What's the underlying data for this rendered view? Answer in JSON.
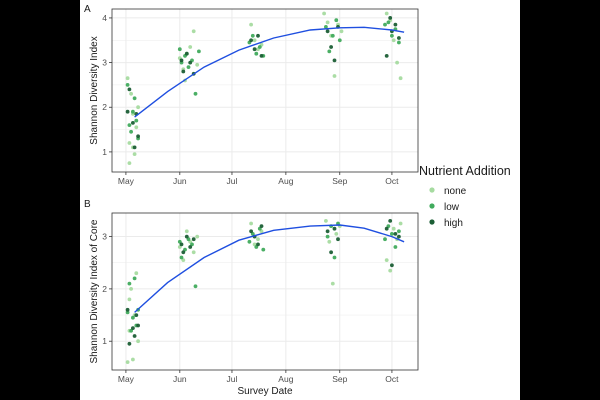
{
  "legend": {
    "title": "Nutrient Addition",
    "position": "right",
    "items": [
      {
        "label": "none",
        "color": "#a6dba0"
      },
      {
        "label": "low",
        "color": "#41ab5d"
      },
      {
        "label": "high",
        "color": "#1b5e35"
      }
    ]
  },
  "colors": {
    "fit_line": "#1f4fe0",
    "grid": "#ebebeb",
    "panel_border": "#333333",
    "text": "#1a1a1a"
  },
  "chart_data": [
    {
      "type": "scatter",
      "panel_label": "A",
      "xlabel": "",
      "ylabel": "Shannon Diversity Index",
      "x_ticks": [
        "May",
        "Jun",
        "Jul",
        "Aug",
        "Sep",
        "Oct"
      ],
      "xlim": [
        "2019-04-23",
        "2019-10-16"
      ],
      "ylim": [
        0.55,
        4.2
      ],
      "y_ticks": [
        1,
        2,
        3,
        4
      ],
      "grid": true,
      "fit_curve": {
        "x": [
          "2019-05-06",
          "2019-05-25",
          "2019-06-15",
          "2019-07-05",
          "2019-07-25",
          "2019-08-15",
          "2019-09-01",
          "2019-09-15",
          "2019-10-01",
          "2019-10-08"
        ],
        "y": [
          1.78,
          2.35,
          2.9,
          3.28,
          3.55,
          3.73,
          3.78,
          3.79,
          3.73,
          3.68
        ]
      },
      "series": [
        {
          "name": "none",
          "x": [
            "2019-05-02",
            "2019-05-03",
            "2019-05-04",
            "2019-05-05",
            "2019-05-06",
            "2019-05-07",
            "2019-05-08",
            "2019-05-03",
            "2019-05-05",
            "2019-06-01",
            "2019-06-03",
            "2019-06-05",
            "2019-06-07",
            "2019-06-09",
            "2019-06-11",
            "2019-06-04",
            "2019-07-12",
            "2019-07-14",
            "2019-07-16",
            "2019-07-18",
            "2019-08-23",
            "2019-08-25",
            "2019-08-27",
            "2019-08-29",
            "2019-08-31",
            "2019-09-02",
            "2019-09-28",
            "2019-09-30",
            "2019-10-02",
            "2019-10-04",
            "2019-10-06"
          ],
          "y": [
            2.65,
            0.75,
            2.3,
            1.1,
            0.95,
            1.55,
            2.0,
            1.2,
            1.85,
            3.1,
            2.85,
            3.2,
            3.35,
            3.7,
            2.95,
            2.6,
            3.85,
            3.5,
            3.3,
            3.4,
            4.1,
            3.9,
            3.6,
            2.7,
            3.85,
            3.7,
            4.1,
            3.95,
            3.5,
            3.0,
            2.65
          ]
        },
        {
          "name": "low",
          "x": [
            "2019-05-02",
            "2019-05-04",
            "2019-05-05",
            "2019-05-06",
            "2019-05-07",
            "2019-05-08",
            "2019-05-03",
            "2019-06-01",
            "2019-06-02",
            "2019-06-04",
            "2019-06-06",
            "2019-06-08",
            "2019-06-10",
            "2019-06-12",
            "2019-07-11",
            "2019-07-13",
            "2019-07-15",
            "2019-07-17",
            "2019-07-19",
            "2019-08-24",
            "2019-08-26",
            "2019-08-28",
            "2019-08-30",
            "2019-09-01",
            "2019-09-27",
            "2019-09-29",
            "2019-10-01",
            "2019-10-03",
            "2019-10-05"
          ],
          "y": [
            2.5,
            1.45,
            1.9,
            2.2,
            1.7,
            1.3,
            1.6,
            3.3,
            3.0,
            3.15,
            2.9,
            3.05,
            2.3,
            3.25,
            3.45,
            3.6,
            3.2,
            3.35,
            3.15,
            3.8,
            3.25,
            3.6,
            3.95,
            3.5,
            3.85,
            3.9,
            3.6,
            3.75,
            3.45
          ]
        },
        {
          "name": "high",
          "x": [
            "2019-05-02",
            "2019-05-03",
            "2019-05-05",
            "2019-05-06",
            "2019-05-07",
            "2019-05-08",
            "2019-06-02",
            "2019-06-03",
            "2019-06-05",
            "2019-06-07",
            "2019-06-09",
            "2019-07-12",
            "2019-07-14",
            "2019-07-16",
            "2019-07-18",
            "2019-08-25",
            "2019-08-27",
            "2019-08-29",
            "2019-08-31",
            "2019-09-28",
            "2019-09-30",
            "2019-10-01",
            "2019-10-03",
            "2019-10-05"
          ],
          "y": [
            1.9,
            2.4,
            1.65,
            1.1,
            1.85,
            1.35,
            3.05,
            2.8,
            3.2,
            3.0,
            2.75,
            3.5,
            3.3,
            3.6,
            3.15,
            3.7,
            3.35,
            3.05,
            3.8,
            3.15,
            4.0,
            3.7,
            3.85,
            3.55
          ]
        }
      ]
    },
    {
      "type": "scatter",
      "panel_label": "B",
      "xlabel": "Survey Date",
      "ylabel": "Shannon Diversity Index of Core",
      "x_ticks": [
        "May",
        "Jun",
        "Jul",
        "Aug",
        "Sep",
        "Oct"
      ],
      "xlim": [
        "2019-04-23",
        "2019-10-16"
      ],
      "ylim": [
        0.45,
        3.45
      ],
      "y_ticks": [
        1,
        2,
        3
      ],
      "grid": true,
      "fit_curve": {
        "x": [
          "2019-05-06",
          "2019-05-25",
          "2019-06-15",
          "2019-07-05",
          "2019-07-25",
          "2019-08-15",
          "2019-09-01",
          "2019-09-15",
          "2019-10-01",
          "2019-10-08"
        ],
        "y": [
          1.55,
          2.12,
          2.6,
          2.93,
          3.12,
          3.2,
          3.22,
          3.16,
          3.0,
          2.9
        ]
      },
      "series": [
        {
          "name": "none",
          "x": [
            "2019-05-02",
            "2019-05-03",
            "2019-05-04",
            "2019-05-05",
            "2019-05-06",
            "2019-05-07",
            "2019-05-08",
            "2019-05-03",
            "2019-06-01",
            "2019-06-03",
            "2019-06-05",
            "2019-06-07",
            "2019-06-09",
            "2019-06-11",
            "2019-07-12",
            "2019-07-14",
            "2019-07-16",
            "2019-07-18",
            "2019-08-24",
            "2019-08-26",
            "2019-08-28",
            "2019-08-30",
            "2019-09-01",
            "2019-09-28",
            "2019-09-30",
            "2019-10-02",
            "2019-10-04",
            "2019-10-06"
          ],
          "y": [
            0.6,
            1.2,
            2.0,
            0.65,
            1.5,
            2.3,
            1.0,
            1.8,
            2.8,
            2.55,
            3.1,
            2.9,
            2.7,
            3.0,
            3.25,
            2.85,
            2.95,
            3.1,
            3.3,
            2.9,
            2.1,
            3.05,
            3.2,
            2.55,
            2.35,
            3.15,
            2.95,
            3.25
          ]
        },
        {
          "name": "low",
          "x": [
            "2019-05-02",
            "2019-05-04",
            "2019-05-05",
            "2019-05-06",
            "2019-05-07",
            "2019-05-08",
            "2019-05-03",
            "2019-06-01",
            "2019-06-02",
            "2019-06-04",
            "2019-06-06",
            "2019-06-08",
            "2019-06-10",
            "2019-07-11",
            "2019-07-13",
            "2019-07-15",
            "2019-07-17",
            "2019-07-19",
            "2019-08-25",
            "2019-08-27",
            "2019-08-29",
            "2019-08-31",
            "2019-09-27",
            "2019-09-29",
            "2019-10-01",
            "2019-10-03",
            "2019-10-05"
          ],
          "y": [
            1.55,
            1.2,
            1.45,
            2.2,
            1.3,
            1.6,
            2.1,
            2.9,
            2.6,
            2.75,
            2.95,
            2.85,
            2.05,
            2.9,
            3.05,
            2.8,
            3.15,
            2.75,
            3.0,
            3.2,
            2.6,
            3.25,
            2.95,
            3.2,
            3.05,
            2.8,
            3.1
          ]
        },
        {
          "name": "high",
          "x": [
            "2019-05-02",
            "2019-05-03",
            "2019-05-05",
            "2019-05-06",
            "2019-05-07",
            "2019-05-08",
            "2019-06-02",
            "2019-06-03",
            "2019-06-05",
            "2019-06-07",
            "2019-06-09",
            "2019-07-12",
            "2019-07-14",
            "2019-07-16",
            "2019-07-18",
            "2019-08-25",
            "2019-08-27",
            "2019-08-29",
            "2019-08-31",
            "2019-09-28",
            "2019-09-30",
            "2019-10-01",
            "2019-10-03",
            "2019-10-05"
          ],
          "y": [
            1.6,
            0.95,
            1.25,
            1.1,
            1.5,
            1.3,
            2.85,
            2.7,
            3.0,
            2.8,
            2.95,
            3.1,
            3.0,
            2.85,
            3.2,
            3.1,
            2.7,
            3.15,
            2.95,
            3.15,
            3.3,
            2.45,
            3.05,
            3.0
          ]
        }
      ]
    }
  ]
}
